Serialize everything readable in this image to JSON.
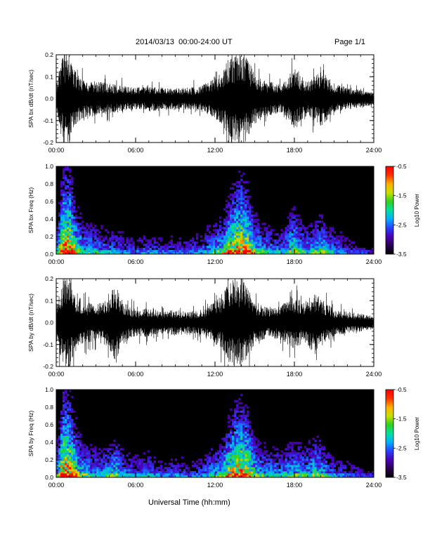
{
  "header": {
    "title": "2014/03/13  00:00-24:00 UT",
    "page_label": "Page 1/1"
  },
  "footer": {
    "xlabel": "Universal Time (hh:mm)"
  },
  "colors": {
    "trace": "#000000",
    "frame": "#000000",
    "background": "#ffffff",
    "colormap": [
      "#000000",
      "#2a004f",
      "#4a00b5",
      "#2a3fff",
      "#00b0ff",
      "#00e0a0",
      "#30d020",
      "#c8e000",
      "#ffb000",
      "#ff3000",
      "#ff0000"
    ]
  },
  "chart_data": [
    {
      "type": "line",
      "id": "bx-dbdt",
      "ylabel": "SPA bx dB/dt (nT/sec)",
      "x_ticks": [
        "00:00",
        "06:00",
        "12:00",
        "18:00",
        "24:00"
      ],
      "xlim_hours": [
        0,
        24
      ],
      "ylim": [
        -0.2,
        0.2
      ],
      "y_ticks": [
        "-0.2",
        "-0.1",
        "0.0",
        "0.1",
        "0.2"
      ],
      "envelope": {
        "x_hours": [
          0,
          0.5,
          1,
          1.5,
          2,
          3,
          4,
          5,
          6,
          7,
          8,
          9,
          10,
          11,
          12,
          12.5,
          13,
          13.5,
          14,
          14.5,
          15,
          15.5,
          16,
          17,
          18,
          18.5,
          19,
          19.5,
          20,
          21,
          22,
          23,
          24
        ],
        "amplitude": [
          0.08,
          0.2,
          0.2,
          0.12,
          0.09,
          0.08,
          0.07,
          0.06,
          0.05,
          0.06,
          0.05,
          0.05,
          0.05,
          0.06,
          0.1,
          0.12,
          0.18,
          0.2,
          0.2,
          0.18,
          0.12,
          0.1,
          0.08,
          0.07,
          0.14,
          0.1,
          0.09,
          0.1,
          0.13,
          0.07,
          0.05,
          0.04,
          0.03
        ]
      }
    },
    {
      "type": "heatmap",
      "id": "bx-spectrogram",
      "ylabel": "SPA bx Freq (Hz)",
      "x_ticks": [
        "00:00",
        "06:00",
        "12:00",
        "18:00",
        "24:00"
      ],
      "xlim_hours": [
        0,
        24
      ],
      "ylim": [
        0,
        1.0
      ],
      "y_ticks": [
        "0.0",
        "0.2",
        "0.4",
        "0.6",
        "0.8",
        "1.0"
      ],
      "colorbar": {
        "label": "Log10 Power",
        "range": [
          -3.5,
          -0.5
        ],
        "ticks": [
          "-0.5",
          "-1.5",
          "-2.5",
          "-3.5"
        ]
      },
      "activity": {
        "x_hours": [
          0,
          0.5,
          1,
          1.5,
          2,
          3,
          4,
          5,
          6,
          7,
          8,
          9,
          10,
          11,
          12,
          12.5,
          13,
          13.5,
          14,
          14.5,
          15,
          15.5,
          16,
          17,
          18,
          18.5,
          19,
          19.5,
          20,
          21,
          22,
          23,
          24
        ],
        "level": [
          0.4,
          1.0,
          1.0,
          0.7,
          0.5,
          0.45,
          0.4,
          0.35,
          0.3,
          0.35,
          0.3,
          0.3,
          0.3,
          0.35,
          0.5,
          0.55,
          0.75,
          0.9,
          0.95,
          0.85,
          0.6,
          0.5,
          0.45,
          0.4,
          0.65,
          0.5,
          0.45,
          0.5,
          0.6,
          0.4,
          0.3,
          0.25,
          0.2
        ]
      }
    },
    {
      "type": "line",
      "id": "by-dbdt",
      "ylabel": "SPA by dB/dt (nT/sec)",
      "x_ticks": [
        "00:00",
        "06:00",
        "12:00",
        "18:00",
        "24:00"
      ],
      "xlim_hours": [
        0,
        24
      ],
      "ylim": [
        -0.2,
        0.2
      ],
      "y_ticks": [
        "-0.2",
        "-0.1",
        "0.0",
        "0.1",
        "0.2"
      ],
      "envelope": {
        "x_hours": [
          0,
          0.5,
          1,
          1.5,
          2,
          3,
          4,
          4.5,
          5,
          6,
          7,
          8,
          9,
          10,
          11,
          12,
          12.5,
          13,
          13.5,
          14,
          14.5,
          15,
          15.5,
          16,
          17,
          18,
          18.5,
          19,
          19.5,
          20,
          21,
          22,
          23,
          24
        ],
        "amplitude": [
          0.08,
          0.2,
          0.2,
          0.13,
          0.1,
          0.08,
          0.12,
          0.18,
          0.1,
          0.06,
          0.07,
          0.05,
          0.06,
          0.05,
          0.06,
          0.1,
          0.12,
          0.18,
          0.2,
          0.2,
          0.16,
          0.1,
          0.08,
          0.07,
          0.08,
          0.12,
          0.1,
          0.11,
          0.14,
          0.11,
          0.06,
          0.05,
          0.04,
          0.03
        ]
      }
    },
    {
      "type": "heatmap",
      "id": "by-spectrogram",
      "ylabel": "SPA by Freq (Hz)",
      "x_ticks": [
        "00:00",
        "06:00",
        "12:00",
        "18:00",
        "24:00"
      ],
      "xlim_hours": [
        0,
        24
      ],
      "ylim": [
        0,
        1.0
      ],
      "y_ticks": [
        "0.0",
        "0.2",
        "0.4",
        "0.6",
        "0.8",
        "1.0"
      ],
      "colorbar": {
        "label": "Log10 Power",
        "range": [
          -3.5,
          -0.5
        ],
        "ticks": [
          "-0.5",
          "-1.5",
          "-2.5",
          "-3.5"
        ]
      },
      "activity": {
        "x_hours": [
          0,
          0.5,
          1,
          1.5,
          2,
          3,
          4,
          4.5,
          5,
          6,
          7,
          8,
          9,
          10,
          11,
          12,
          12.5,
          13,
          13.5,
          14,
          14.5,
          15,
          15.5,
          16,
          17,
          18,
          18.5,
          19,
          19.5,
          20,
          21,
          22,
          23,
          24
        ],
        "level": [
          0.45,
          1.0,
          1.0,
          0.75,
          0.55,
          0.45,
          0.5,
          0.6,
          0.45,
          0.35,
          0.4,
          0.3,
          0.35,
          0.3,
          0.35,
          0.5,
          0.55,
          0.75,
          0.9,
          0.95,
          0.85,
          0.6,
          0.5,
          0.45,
          0.45,
          0.55,
          0.5,
          0.5,
          0.6,
          0.55,
          0.35,
          0.3,
          0.25,
          0.2
        ]
      }
    }
  ]
}
